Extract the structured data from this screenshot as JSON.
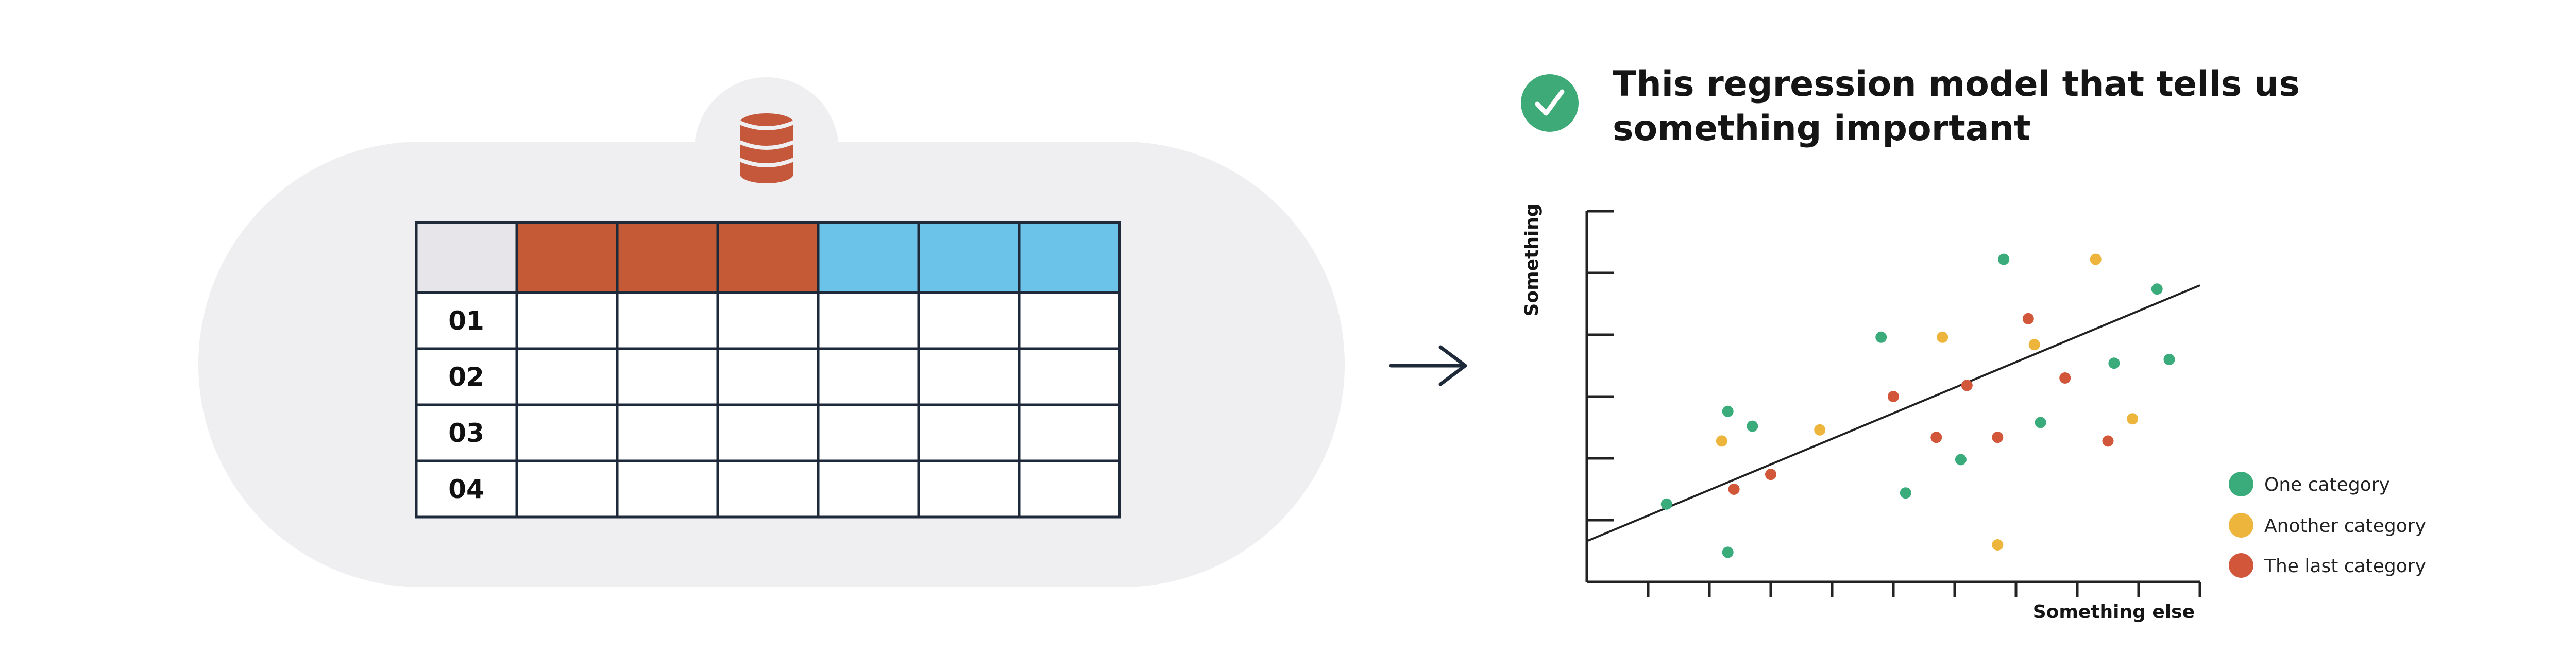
{
  "colors": {
    "background": "#ffffff",
    "pill": "#efeef0",
    "database": "#c5583a",
    "header_orange": "#c45a36",
    "header_blue": "#6cc3ea",
    "header_corner": "#e7e4ea",
    "grid_line": "#1e2a3a",
    "check": "#3daa78",
    "green": "#3aab7b",
    "yellow": "#edb53b",
    "red": "#d2573a",
    "axis": "#222222"
  },
  "source": {
    "database_icon": "database-icon",
    "row_labels": [
      "01",
      "02",
      "03",
      "04"
    ],
    "column_header_colors": [
      "orange",
      "orange",
      "orange",
      "blue",
      "blue",
      "blue"
    ]
  },
  "arrow_icon": "arrow-right-icon",
  "check_icon": "check-circle-icon",
  "title_lines": [
    "This regression model that tells us",
    "something important"
  ],
  "chart_data": {
    "type": "scatter",
    "xlabel": "Something else",
    "ylabel": "Something",
    "xlim": [
      0,
      100
    ],
    "ylim": [
      0,
      100
    ],
    "x_ticks": [
      10,
      20,
      30,
      40,
      50,
      60,
      70,
      80,
      90,
      100
    ],
    "y_ticks": [
      0,
      16.67,
      33.33,
      50,
      66.67,
      83.33,
      100
    ],
    "legend": "right",
    "series": [
      {
        "name": "One category",
        "color_key": "green",
        "points": [
          [
            13,
            21
          ],
          [
            23,
            46
          ],
          [
            27,
            42
          ],
          [
            23,
            8
          ],
          [
            48,
            66
          ],
          [
            52,
            24
          ],
          [
            61,
            33
          ],
          [
            68,
            87
          ],
          [
            74,
            43
          ],
          [
            86,
            59
          ],
          [
            93,
            79
          ],
          [
            95,
            60
          ]
        ]
      },
      {
        "name": "Another category",
        "color_key": "yellow",
        "points": [
          [
            22,
            38
          ],
          [
            38,
            41
          ],
          [
            58,
            66
          ],
          [
            73,
            64
          ],
          [
            67,
            10
          ],
          [
            83,
            87
          ],
          [
            89,
            44
          ]
        ]
      },
      {
        "name": "The last category",
        "color_key": "red",
        "points": [
          [
            24,
            25
          ],
          [
            30,
            29
          ],
          [
            50,
            50
          ],
          [
            57,
            39
          ],
          [
            62,
            53
          ],
          [
            67,
            39
          ],
          [
            72,
            71
          ],
          [
            78,
            55
          ],
          [
            85,
            38
          ]
        ]
      }
    ],
    "regression_line": [
      [
        0,
        11
      ],
      [
        100,
        80
      ]
    ]
  }
}
